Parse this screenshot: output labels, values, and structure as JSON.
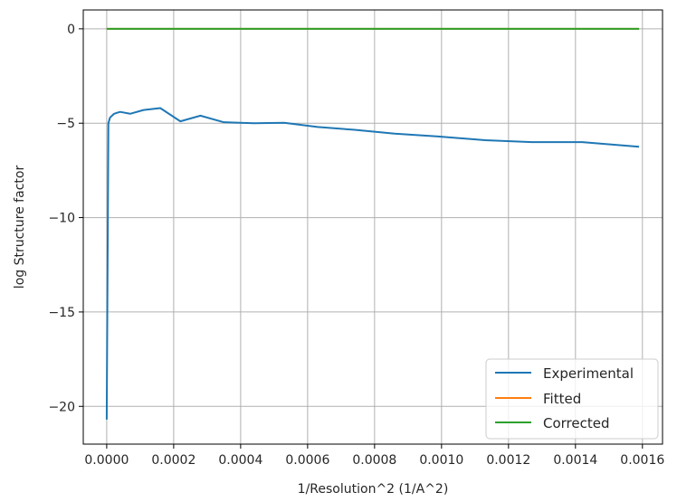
{
  "chart_data": {
    "type": "line",
    "xlabel": "1/Resolution^2 (1/A^2)",
    "ylabel": "log Structure factor",
    "xlim": [
      -7e-05,
      0.00166
    ],
    "ylim": [
      -22.0,
      1.0
    ],
    "xticks": [
      0.0,
      0.0002,
      0.0004,
      0.0006,
      0.0008,
      0.001,
      0.0012,
      0.0014,
      0.0016
    ],
    "xtick_labels": [
      "0.0000",
      "0.0002",
      "0.0004",
      "0.0006",
      "0.0008",
      "0.0010",
      "0.0012",
      "0.0014",
      "0.0016"
    ],
    "yticks": [
      0,
      -5,
      -10,
      -15,
      -20
    ],
    "ytick_labels": [
      "0",
      "−5",
      "−10",
      "−15",
      "−20"
    ],
    "grid": true,
    "legend_position": "bottom-right",
    "series": [
      {
        "name": "Experimental",
        "color": "#1f77b4",
        "x": [
          0.0,
          5e-06,
          1e-05,
          2.2e-05,
          4e-05,
          7e-05,
          0.00011,
          0.00016,
          0.00022,
          0.00028,
          0.00035,
          0.00044,
          0.00053,
          0.00063,
          0.00074,
          0.00086,
          0.00099,
          0.00113,
          0.00127,
          0.00142,
          0.00159
        ],
        "y": [
          -20.7,
          -5.0,
          -4.7,
          -4.5,
          -4.4,
          -4.5,
          -4.3,
          -4.2,
          -4.9,
          -4.6,
          -4.95,
          -5.0,
          -4.98,
          -5.2,
          -5.35,
          -5.55,
          -5.7,
          -5.9,
          -6.0,
          -6.0,
          -6.25
        ]
      },
      {
        "name": "Fitted",
        "color": "#ff7f0e",
        "x": [
          0.0,
          0.00159
        ],
        "y": [
          0.0,
          0.0
        ]
      },
      {
        "name": "Corrected",
        "color": "#2ca02c",
        "x": [
          0.0,
          0.00159
        ],
        "y": [
          0.0,
          0.0
        ]
      }
    ]
  }
}
